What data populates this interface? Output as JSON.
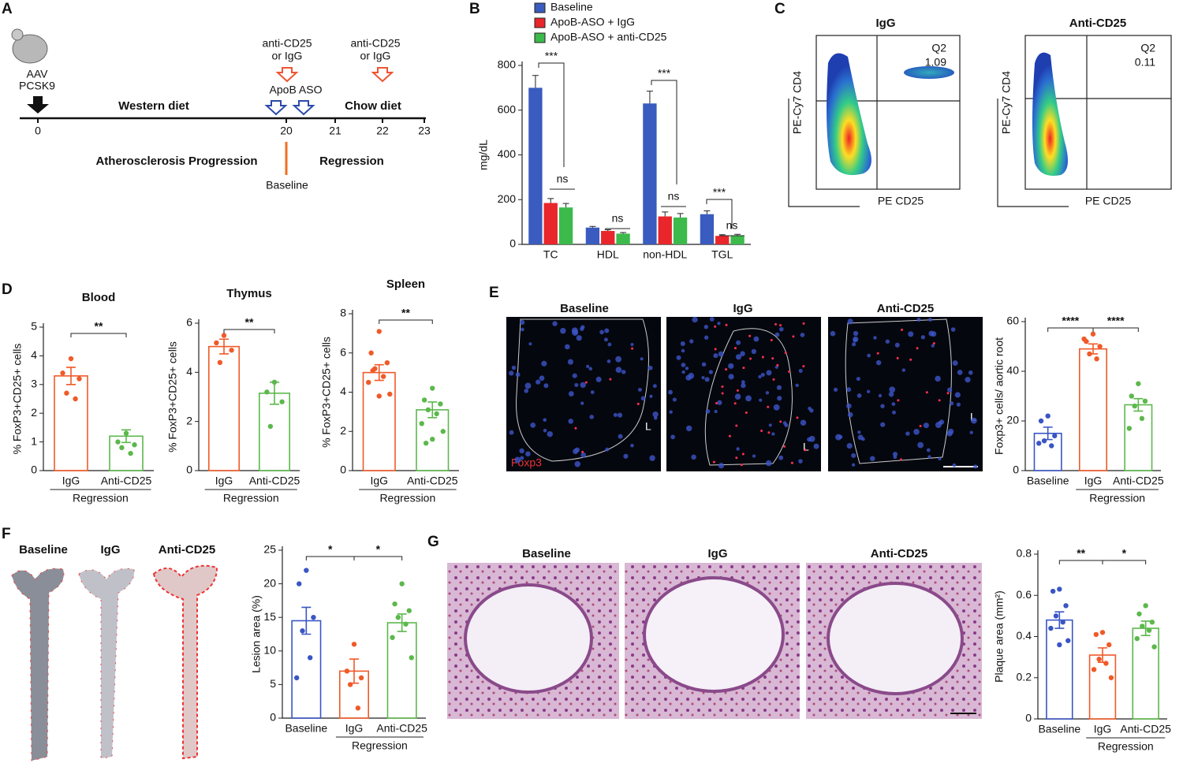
{
  "panel_labels": [
    "A",
    "B",
    "C",
    "D",
    "E",
    "F",
    "G"
  ],
  "timeline": {
    "mouse_label": [
      "AAV",
      "PCSK9"
    ],
    "treatment_1": [
      "anti-CD25",
      "or IgG"
    ],
    "treatment_2": [
      "anti-CD25",
      "or IgG"
    ],
    "apob": "ApoB ASO",
    "diet_1": "Western diet",
    "diet_2": "Chow diet",
    "ticks": [
      0,
      20,
      21,
      22,
      23
    ],
    "phase_1": "Atherosclerosis Progression",
    "phase_2": "Regression",
    "baseline": "Baseline"
  },
  "flow": {
    "x_label": "PE CD25",
    "y_label": "PE-Cy7 CD4",
    "plots": [
      {
        "title": "IgG",
        "quadrant": "Q2",
        "percent": 1.09
      },
      {
        "title": "Anti-CD25",
        "quadrant": "Q2",
        "percent": 0.11
      }
    ]
  },
  "histology_e": {
    "titles": [
      "Baseline",
      "IgG",
      "Anti-CD25"
    ],
    "lumen": "L",
    "stain": "Foxp3"
  },
  "images_f": {
    "titles": [
      "Baseline",
      "IgG",
      "Anti-CD25"
    ]
  },
  "histology_g": {
    "titles": [
      "Baseline",
      "IgG",
      "Anti-CD25"
    ]
  },
  "chart_data": [
    {
      "type": "bar",
      "ylabel": "mg/dL",
      "categories": [
        "TC",
        "HDL",
        "non-HDL",
        "TGL"
      ],
      "series": [
        {
          "name": "Baseline",
          "color": "#3a5bbf",
          "values": [
            700,
            75,
            630,
            135
          ],
          "errors": [
            55,
            5,
            55,
            15
          ]
        },
        {
          "name": "ApoB-ASO + IgG",
          "color": "#e8262b",
          "values": [
            185,
            60,
            125,
            38
          ],
          "errors": [
            20,
            5,
            20,
            5
          ]
        },
        {
          "name": "ApoB-ASO + anti-CD25",
          "color": "#3cba4b",
          "values": [
            165,
            48,
            120,
            40
          ],
          "errors": [
            18,
            5,
            18,
            5
          ]
        }
      ],
      "ylim": [
        0,
        800
      ],
      "yticks": [
        0,
        200,
        400,
        600,
        800
      ],
      "annotations": [
        "***",
        "ns",
        "ns",
        "***",
        "ns",
        "***",
        "ns"
      ],
      "legend": "top"
    },
    {
      "type": "bar",
      "title": "Blood",
      "ylabel": "% FoxP3+CD25+ cells",
      "categories": [
        "IgG",
        "Anti-CD25"
      ],
      "group_label": "Regression",
      "colors": [
        "#f05a28",
        "#5cb84c"
      ],
      "values": [
        3.3,
        1.2
      ],
      "errors": [
        0.3,
        0.22
      ],
      "points": [
        [
          3.9,
          3.4,
          3.2,
          2.7,
          2.5
        ],
        [
          1.3,
          1.0,
          0.9,
          0.8,
          0.6
        ]
      ],
      "ylim": [
        0,
        5
      ],
      "yticks": [
        0,
        1,
        2,
        3,
        4,
        5
      ],
      "annotations": [
        "**"
      ]
    },
    {
      "type": "bar",
      "title": "Thymus",
      "ylabel": "% FoxP3+CD25+ cells",
      "categories": [
        "IgG",
        "Anti-CD25"
      ],
      "group_label": "Regression",
      "colors": [
        "#f05a28",
        "#5cb84c"
      ],
      "values": [
        5.05,
        3.15
      ],
      "errors": [
        0.3,
        0.45
      ],
      "points": [
        [
          5.5,
          5.2,
          4.9,
          4.4
        ],
        [
          3.6,
          3.2,
          2.8,
          1.8
        ]
      ],
      "ylim": [
        0,
        6
      ],
      "yticks": [
        0,
        2,
        4,
        6
      ],
      "annotations": [
        "**"
      ]
    },
    {
      "type": "bar",
      "title": "Spleen",
      "ylabel": "% FoxP3+CD25+ cells",
      "categories": [
        "IgG",
        "Anti-CD25"
      ],
      "group_label": "Regression",
      "colors": [
        "#f05a28",
        "#5cb84c"
      ],
      "values": [
        5.0,
        3.1
      ],
      "errors": [
        0.4,
        0.4
      ],
      "points": [
        [
          7.1,
          6.0,
          5.5,
          5.2,
          4.8,
          4.5,
          3.9,
          3.8,
          5.1
        ],
        [
          4.2,
          3.6,
          3.4,
          3.1,
          2.9,
          2.4,
          2.0,
          1.6,
          1.4
        ]
      ],
      "ylim": [
        0,
        8
      ],
      "yticks": [
        0,
        2,
        4,
        6,
        8
      ],
      "annotations": [
        "**"
      ]
    },
    {
      "type": "bar",
      "ylabel": "Foxp3+ cells/ aortic root",
      "categories": [
        "Baseline",
        "IgG",
        "Anti-CD25"
      ],
      "group_label": "Regression",
      "colors": [
        "#3a55c4",
        "#f05a28",
        "#5cb84c"
      ],
      "values": [
        15,
        49,
        26.5
      ],
      "errors": [
        2.5,
        2,
        2.5
      ],
      "points": [
        [
          22,
          20,
          14,
          12,
          10,
          11
        ],
        [
          55,
          52,
          50,
          47,
          45,
          53
        ],
        [
          35,
          30,
          28,
          26,
          21,
          17
        ]
      ],
      "ylim": [
        0,
        60
      ],
      "yticks": [
        0,
        20,
        40,
        60
      ],
      "annotations": [
        "****",
        "****"
      ]
    },
    {
      "type": "bar",
      "ylabel": "Lesion area (%)",
      "categories": [
        "Baseline",
        "IgG",
        "Anti-CD25"
      ],
      "group_label": "Regression",
      "colors": [
        "#3a55c4",
        "#f05a28",
        "#5cb84c"
      ],
      "values": [
        14.5,
        7,
        14.2
      ],
      "errors": [
        2,
        1.8,
        1.3
      ],
      "points": [
        [
          22,
          20,
          15,
          13,
          9,
          6
        ],
        [
          11,
          7,
          6,
          5,
          1.5
        ],
        [
          20,
          17,
          16,
          15,
          14,
          12,
          9
        ]
      ],
      "ylim": [
        0,
        25
      ],
      "yticks": [
        0,
        5,
        10,
        15,
        20,
        25
      ],
      "annotations": [
        "*",
        "*"
      ]
    },
    {
      "type": "bar",
      "ylabel": "Plaque area (mm²)",
      "categories": [
        "Baseline",
        "IgG",
        "Anti-CD25"
      ],
      "group_label": "Regression",
      "colors": [
        "#3a55c4",
        "#f05a28",
        "#5cb84c"
      ],
      "values": [
        0.48,
        0.31,
        0.44
      ],
      "errors": [
        0.04,
        0.035,
        0.035
      ],
      "points": [
        [
          0.63,
          0.62,
          0.55,
          0.5,
          0.47,
          0.44,
          0.38,
          0.36
        ],
        [
          0.42,
          0.41,
          0.36,
          0.29,
          0.27,
          0.24,
          0.2
        ],
        [
          0.55,
          0.51,
          0.47,
          0.45,
          0.43,
          0.39,
          0.35
        ]
      ],
      "ylim": [
        0,
        0.8
      ],
      "yticks": [
        0,
        0.2,
        0.4,
        0.6,
        0.8
      ],
      "annotations": [
        "**",
        "*"
      ]
    }
  ]
}
